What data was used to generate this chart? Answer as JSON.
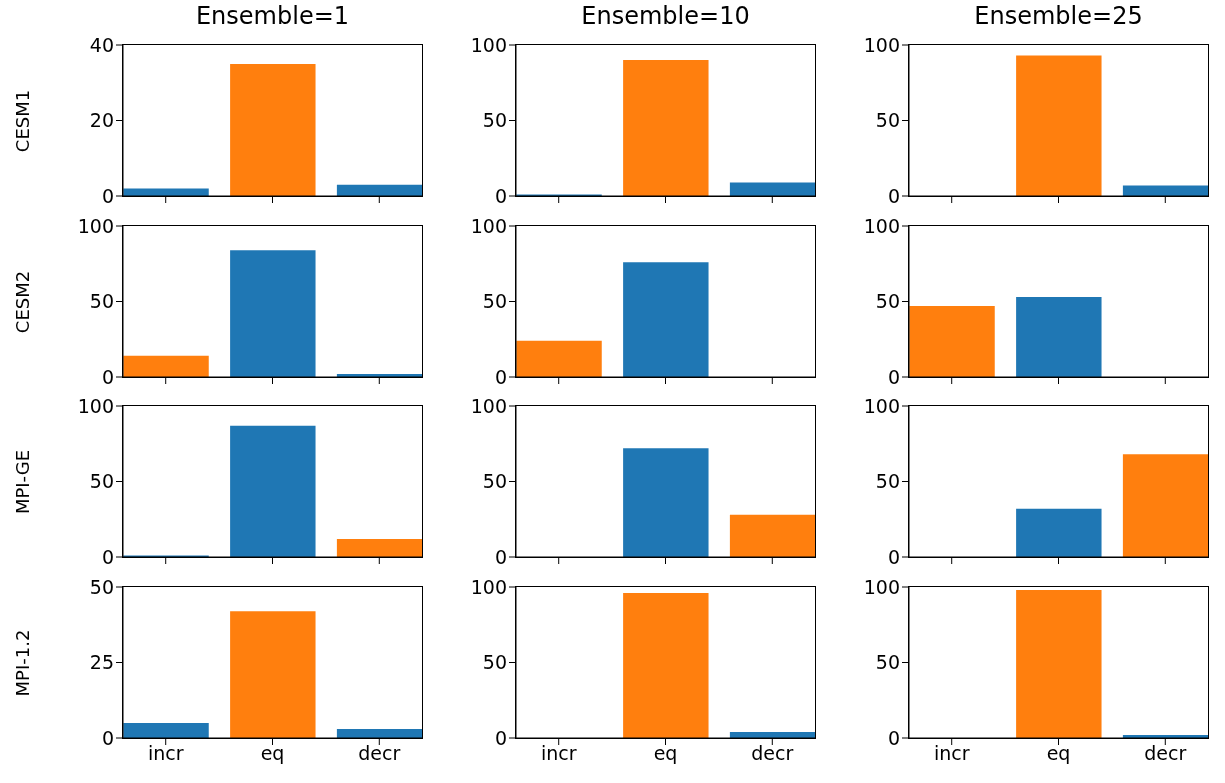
{
  "chart_data": [
    {
      "type": "bar",
      "title": "Ensemble=1",
      "ylabel": "CESM1",
      "categories": [
        null,
        null,
        null
      ],
      "values": [
        2,
        35,
        3
      ],
      "colors": [
        "#1f77b4",
        "#ff7f0e",
        "#1f77b4"
      ],
      "ylim": [
        0,
        40
      ],
      "yticks": [
        0,
        20,
        40
      ],
      "tick_labels": "y"
    },
    {
      "type": "bar",
      "title": "Ensemble=10",
      "categories": [
        null,
        null,
        null
      ],
      "values": [
        1,
        90,
        9
      ],
      "colors": [
        "#1f77b4",
        "#ff7f0e",
        "#1f77b4"
      ],
      "ylim": [
        0,
        100
      ],
      "yticks": [
        0,
        50,
        100
      ],
      "tick_labels": "y"
    },
    {
      "type": "bar",
      "title": "Ensemble=25",
      "categories": [
        null,
        null,
        null
      ],
      "values": [
        0,
        93,
        7
      ],
      "colors": [
        "#1f77b4",
        "#ff7f0e",
        "#1f77b4"
      ],
      "ylim": [
        0,
        100
      ],
      "yticks": [
        0,
        50,
        100
      ],
      "tick_labels": "y"
    },
    {
      "type": "bar",
      "ylabel": "CESM2",
      "categories": [
        null,
        null,
        null
      ],
      "values": [
        14,
        84,
        2
      ],
      "colors": [
        "#ff7f0e",
        "#1f77b4",
        "#1f77b4"
      ],
      "ylim": [
        0,
        100
      ],
      "yticks": [
        0,
        50,
        100
      ],
      "tick_labels": "y"
    },
    {
      "type": "bar",
      "categories": [
        null,
        null,
        null
      ],
      "values": [
        24,
        76,
        0
      ],
      "colors": [
        "#ff7f0e",
        "#1f77b4",
        "#1f77b4"
      ],
      "ylim": [
        0,
        100
      ],
      "yticks": [
        0,
        50,
        100
      ],
      "tick_labels": "y"
    },
    {
      "type": "bar",
      "categories": [
        null,
        null,
        null
      ],
      "values": [
        47,
        53,
        0
      ],
      "colors": [
        "#ff7f0e",
        "#1f77b4",
        "#1f77b4"
      ],
      "ylim": [
        0,
        100
      ],
      "yticks": [
        0,
        50,
        100
      ],
      "tick_labels": "y"
    },
    {
      "type": "bar",
      "ylabel": "MPI-GE",
      "categories": [
        null,
        null,
        null
      ],
      "values": [
        1,
        87,
        12
      ],
      "colors": [
        "#1f77b4",
        "#1f77b4",
        "#ff7f0e"
      ],
      "ylim": [
        0,
        100
      ],
      "yticks": [
        0,
        50,
        100
      ],
      "tick_labels": "y"
    },
    {
      "type": "bar",
      "categories": [
        null,
        null,
        null
      ],
      "values": [
        0,
        72,
        28
      ],
      "colors": [
        "#1f77b4",
        "#1f77b4",
        "#ff7f0e"
      ],
      "ylim": [
        0,
        100
      ],
      "yticks": [
        0,
        50,
        100
      ],
      "tick_labels": "y"
    },
    {
      "type": "bar",
      "categories": [
        null,
        null,
        null
      ],
      "values": [
        0,
        32,
        68
      ],
      "colors": [
        "#1f77b4",
        "#1f77b4",
        "#ff7f0e"
      ],
      "ylim": [
        0,
        100
      ],
      "yticks": [
        0,
        50,
        100
      ],
      "tick_labels": "y"
    },
    {
      "type": "bar",
      "ylabel": "MPI-1.2",
      "categories": [
        "incr",
        "eq",
        "decr"
      ],
      "values": [
        5,
        42,
        3
      ],
      "colors": [
        "#1f77b4",
        "#ff7f0e",
        "#1f77b4"
      ],
      "ylim": [
        0,
        50
      ],
      "yticks": [
        0,
        25,
        50
      ]
    },
    {
      "type": "bar",
      "categories": [
        "incr",
        "eq",
        "decr"
      ],
      "values": [
        0,
        96,
        4
      ],
      "colors": [
        "#1f77b4",
        "#ff7f0e",
        "#1f77b4"
      ],
      "ylim": [
        0,
        100
      ],
      "yticks": [
        0,
        50,
        100
      ]
    },
    {
      "type": "bar",
      "categories": [
        "incr",
        "eq",
        "decr"
      ],
      "values": [
        0,
        98,
        2
      ],
      "colors": [
        "#1f77b4",
        "#ff7f0e",
        "#1f77b4"
      ],
      "ylim": [
        0,
        100
      ],
      "yticks": [
        0,
        50,
        100
      ]
    }
  ]
}
